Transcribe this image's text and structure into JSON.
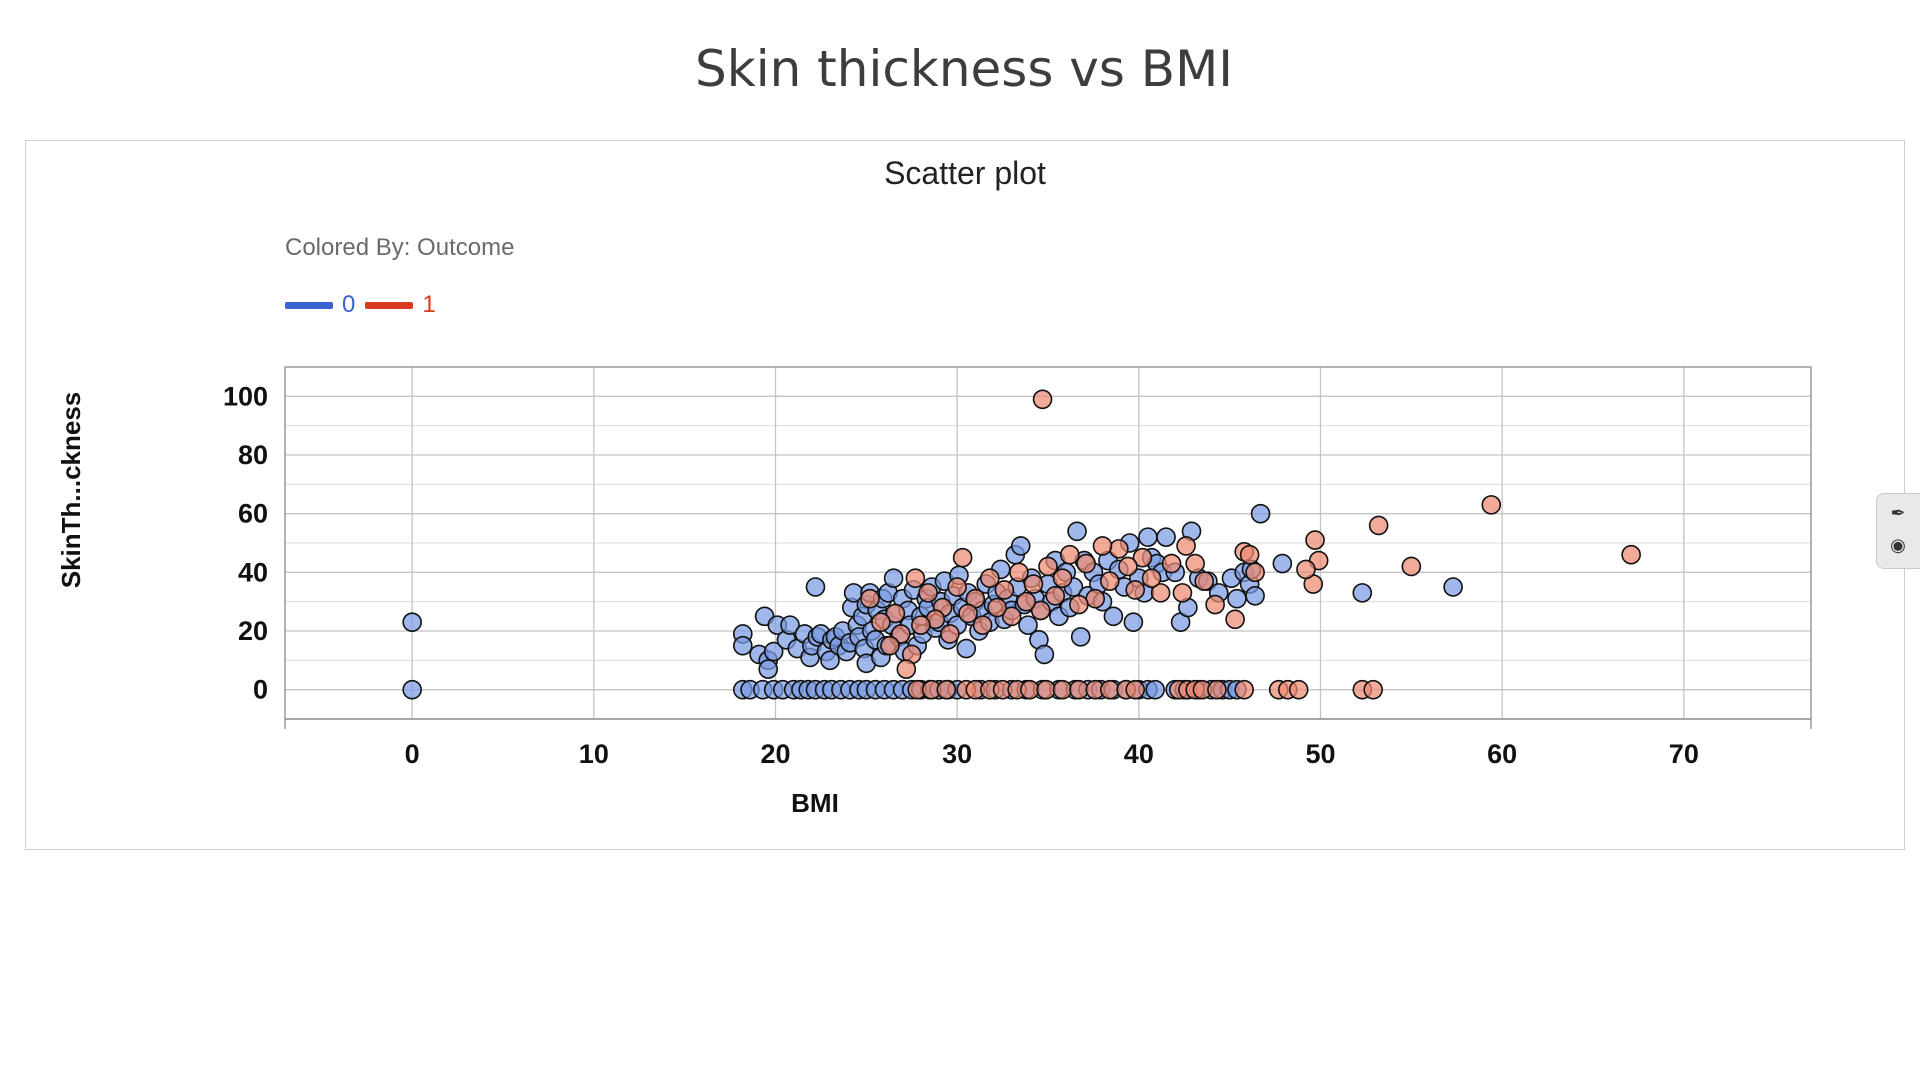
{
  "slide_title": "Skin thickness vs BMI",
  "panel": {
    "title": "Scatter plot",
    "colored_by": "Colored By: Outcome"
  },
  "side_tab": {
    "icons": [
      "brush-icon",
      "target-icon"
    ]
  },
  "colors": {
    "class0": "#3a62d1",
    "class1": "#d83b1f",
    "point0": "#7a9be2",
    "point1": "#ef8a72"
  },
  "chart_data": {
    "type": "scatter",
    "title": "Scatter plot",
    "xlabel": "BMI",
    "ylabel": "SkinTh...ckness",
    "xlim": [
      -7,
      77
    ],
    "ylim": [
      -10,
      110
    ],
    "xticks": [
      0,
      10,
      20,
      30,
      40,
      50,
      60,
      70
    ],
    "yticks": [
      0,
      20,
      40,
      60,
      80,
      100
    ],
    "grid": true,
    "legend_title": "Colored By: Outcome",
    "legend_position": "top-left",
    "series": [
      {
        "name": "0",
        "color": "#3a62d1",
        "points": [
          [
            0,
            23
          ],
          [
            0,
            0
          ],
          [
            18.2,
            19
          ],
          [
            18.2,
            15
          ],
          [
            19.4,
            25
          ],
          [
            19.1,
            12
          ],
          [
            19.6,
            10
          ],
          [
            19.6,
            7
          ],
          [
            19.9,
            13
          ],
          [
            20.1,
            22
          ],
          [
            20.6,
            17
          ],
          [
            20.8,
            22
          ],
          [
            21.2,
            14
          ],
          [
            21.6,
            19
          ],
          [
            21.9,
            11
          ],
          [
            22.0,
            15
          ],
          [
            22.2,
            35
          ],
          [
            22.3,
            18
          ],
          [
            22.5,
            19
          ],
          [
            22.8,
            13
          ],
          [
            23.0,
            10
          ],
          [
            23.1,
            17
          ],
          [
            23.3,
            18
          ],
          [
            23.5,
            15
          ],
          [
            23.7,
            20
          ],
          [
            23.9,
            13
          ],
          [
            24.1,
            16
          ],
          [
            24.2,
            28
          ],
          [
            24.3,
            33
          ],
          [
            24.5,
            22
          ],
          [
            24.6,
            18
          ],
          [
            24.8,
            25
          ],
          [
            24.9,
            14
          ],
          [
            25.0,
            29
          ],
          [
            25.0,
            9
          ],
          [
            25.2,
            33
          ],
          [
            25.3,
            20
          ],
          [
            25.5,
            17
          ],
          [
            25.6,
            27
          ],
          [
            25.8,
            11
          ],
          [
            25.9,
            31
          ],
          [
            26.0,
            24
          ],
          [
            26.1,
            15
          ],
          [
            26.2,
            33
          ],
          [
            26.4,
            22
          ],
          [
            26.5,
            38
          ],
          [
            26.6,
            26
          ],
          [
            26.8,
            18
          ],
          [
            27.0,
            31
          ],
          [
            27.1,
            13
          ],
          [
            27.3,
            27
          ],
          [
            27.4,
            22
          ],
          [
            27.6,
            34
          ],
          [
            27.8,
            15
          ],
          [
            28.0,
            25
          ],
          [
            28.1,
            19
          ],
          [
            28.3,
            31
          ],
          [
            28.4,
            28
          ],
          [
            28.6,
            35
          ],
          [
            28.8,
            21
          ],
          [
            29.0,
            23
          ],
          [
            29.1,
            30
          ],
          [
            29.3,
            37
          ],
          [
            29.5,
            17
          ],
          [
            29.6,
            26
          ],
          [
            29.8,
            32
          ],
          [
            30.0,
            22
          ],
          [
            30.1,
            39
          ],
          [
            30.3,
            28
          ],
          [
            30.5,
            14
          ],
          [
            30.6,
            33
          ],
          [
            30.8,
            25
          ],
          [
            31.0,
            30
          ],
          [
            31.2,
            20
          ],
          [
            31.4,
            27
          ],
          [
            31.6,
            36
          ],
          [
            31.8,
            23
          ],
          [
            32.0,
            29
          ],
          [
            32.2,
            33
          ],
          [
            32.4,
            41
          ],
          [
            32.6,
            24
          ],
          [
            32.8,
            31
          ],
          [
            33.0,
            27
          ],
          [
            33.2,
            46
          ],
          [
            33.3,
            35
          ],
          [
            33.5,
            49
          ],
          [
            33.7,
            29
          ],
          [
            33.9,
            22
          ],
          [
            34.1,
            38
          ],
          [
            34.3,
            31
          ],
          [
            34.5,
            17
          ],
          [
            34.6,
            27
          ],
          [
            34.8,
            12
          ],
          [
            35.0,
            36
          ],
          [
            35.2,
            30
          ],
          [
            35.4,
            44
          ],
          [
            35.6,
            25
          ],
          [
            35.8,
            33
          ],
          [
            36.0,
            40
          ],
          [
            36.2,
            28
          ],
          [
            36.4,
            35
          ],
          [
            36.6,
            54
          ],
          [
            36.8,
            18
          ],
          [
            37.0,
            44
          ],
          [
            37.2,
            32
          ],
          [
            37.5,
            40
          ],
          [
            37.8,
            36
          ],
          [
            38.0,
            30
          ],
          [
            38.3,
            44
          ],
          [
            38.6,
            25
          ],
          [
            38.9,
            41
          ],
          [
            39.2,
            35
          ],
          [
            39.5,
            50
          ],
          [
            39.7,
            23
          ],
          [
            40.0,
            38
          ],
          [
            40.3,
            33
          ],
          [
            40.5,
            52
          ],
          [
            40.7,
            45
          ],
          [
            41.0,
            43
          ],
          [
            41.3,
            40
          ],
          [
            41.5,
            52
          ],
          [
            42.0,
            40
          ],
          [
            42.3,
            23
          ],
          [
            42.7,
            28
          ],
          [
            42.9,
            54
          ],
          [
            43.3,
            38
          ],
          [
            43.8,
            37
          ],
          [
            44.4,
            33
          ],
          [
            45.1,
            38
          ],
          [
            45.4,
            31
          ],
          [
            45.8,
            40
          ],
          [
            46.1,
            36
          ],
          [
            46.2,
            41
          ],
          [
            46.4,
            32
          ],
          [
            46.7,
            60
          ],
          [
            47.9,
            43
          ],
          [
            52.3,
            33
          ],
          [
            57.3,
            35
          ],
          [
            18.2,
            0
          ],
          [
            18.6,
            0
          ],
          [
            19.3,
            0
          ],
          [
            19.9,
            0
          ],
          [
            20.4,
            0
          ],
          [
            21.0,
            0
          ],
          [
            21.4,
            0
          ],
          [
            21.8,
            0
          ],
          [
            22.2,
            0
          ],
          [
            22.7,
            0
          ],
          [
            23.1,
            0
          ],
          [
            23.6,
            0
          ],
          [
            24.1,
            0
          ],
          [
            24.6,
            0
          ],
          [
            25.0,
            0
          ],
          [
            25.5,
            0
          ],
          [
            26.0,
            0
          ],
          [
            26.5,
            0
          ],
          [
            27.0,
            0
          ],
          [
            27.5,
            0
          ],
          [
            28.0,
            0
          ],
          [
            28.5,
            0
          ],
          [
            29.0,
            0
          ],
          [
            29.5,
            0
          ],
          [
            30.0,
            0
          ],
          [
            31.3,
            0
          ],
          [
            32.1,
            0
          ],
          [
            33.0,
            0
          ],
          [
            33.8,
            0
          ],
          [
            34.7,
            0
          ],
          [
            35.6,
            0
          ],
          [
            36.5,
            0
          ],
          [
            37.2,
            0
          ],
          [
            37.9,
            0
          ],
          [
            38.6,
            0
          ],
          [
            39.3,
            0
          ],
          [
            40.0,
            0
          ],
          [
            40.5,
            0
          ],
          [
            40.9,
            0
          ],
          [
            42.0,
            0
          ],
          [
            42.5,
            0
          ],
          [
            43.3,
            0
          ],
          [
            44.0,
            0
          ],
          [
            44.6,
            0
          ],
          [
            45.0,
            0
          ],
          [
            45.4,
            0
          ]
        ]
      },
      {
        "name": "1",
        "color": "#d83b1f",
        "points": [
          [
            34.7,
            99
          ],
          [
            59.4,
            63
          ],
          [
            67.1,
            46
          ],
          [
            53.2,
            56
          ],
          [
            55.0,
            42
          ],
          [
            49.7,
            51
          ],
          [
            49.9,
            44
          ],
          [
            49.6,
            36
          ],
          [
            49.2,
            41
          ],
          [
            45.8,
            47
          ],
          [
            46.1,
            46
          ],
          [
            46.4,
            40
          ],
          [
            45.3,
            24
          ],
          [
            44.2,
            29
          ],
          [
            43.6,
            37
          ],
          [
            43.1,
            43
          ],
          [
            42.6,
            49
          ],
          [
            42.4,
            33
          ],
          [
            41.8,
            43
          ],
          [
            41.2,
            33
          ],
          [
            40.7,
            38
          ],
          [
            40.2,
            45
          ],
          [
            39.8,
            34
          ],
          [
            39.4,
            42
          ],
          [
            38.9,
            48
          ],
          [
            38.4,
            37
          ],
          [
            38.0,
            49
          ],
          [
            37.6,
            31
          ],
          [
            37.1,
            43
          ],
          [
            36.7,
            29
          ],
          [
            36.2,
            46
          ],
          [
            35.8,
            38
          ],
          [
            35.4,
            32
          ],
          [
            35.0,
            42
          ],
          [
            34.6,
            27
          ],
          [
            34.2,
            36
          ],
          [
            33.8,
            30
          ],
          [
            33.4,
            40
          ],
          [
            33.0,
            25
          ],
          [
            32.6,
            34
          ],
          [
            32.2,
            28
          ],
          [
            31.8,
            38
          ],
          [
            31.4,
            22
          ],
          [
            31.0,
            31
          ],
          [
            30.6,
            26
          ],
          [
            30.3,
            45
          ],
          [
            30.0,
            35
          ],
          [
            29.6,
            19
          ],
          [
            29.2,
            28
          ],
          [
            28.8,
            24
          ],
          [
            28.4,
            33
          ],
          [
            28.0,
            22
          ],
          [
            27.7,
            38
          ],
          [
            27.5,
            12
          ],
          [
            27.2,
            7
          ],
          [
            26.9,
            19
          ],
          [
            26.6,
            26
          ],
          [
            26.3,
            15
          ],
          [
            25.8,
            23
          ],
          [
            25.2,
            31
          ],
          [
            27.8,
            0
          ],
          [
            28.6,
            0
          ],
          [
            29.4,
            0
          ],
          [
            30.5,
            0
          ],
          [
            31.0,
            0
          ],
          [
            31.8,
            0
          ],
          [
            32.5,
            0
          ],
          [
            33.3,
            0
          ],
          [
            34.0,
            0
          ],
          [
            34.9,
            0
          ],
          [
            35.8,
            0
          ],
          [
            36.7,
            0
          ],
          [
            37.6,
            0
          ],
          [
            38.4,
            0
          ],
          [
            39.3,
            0
          ],
          [
            39.8,
            0
          ],
          [
            42.2,
            0
          ],
          [
            42.7,
            0
          ],
          [
            43.1,
            0
          ],
          [
            43.5,
            0
          ],
          [
            44.3,
            0
          ],
          [
            45.8,
            0
          ],
          [
            47.7,
            0
          ],
          [
            48.2,
            0
          ],
          [
            48.8,
            0
          ],
          [
            52.3,
            0
          ],
          [
            52.9,
            0
          ]
        ]
      }
    ]
  }
}
